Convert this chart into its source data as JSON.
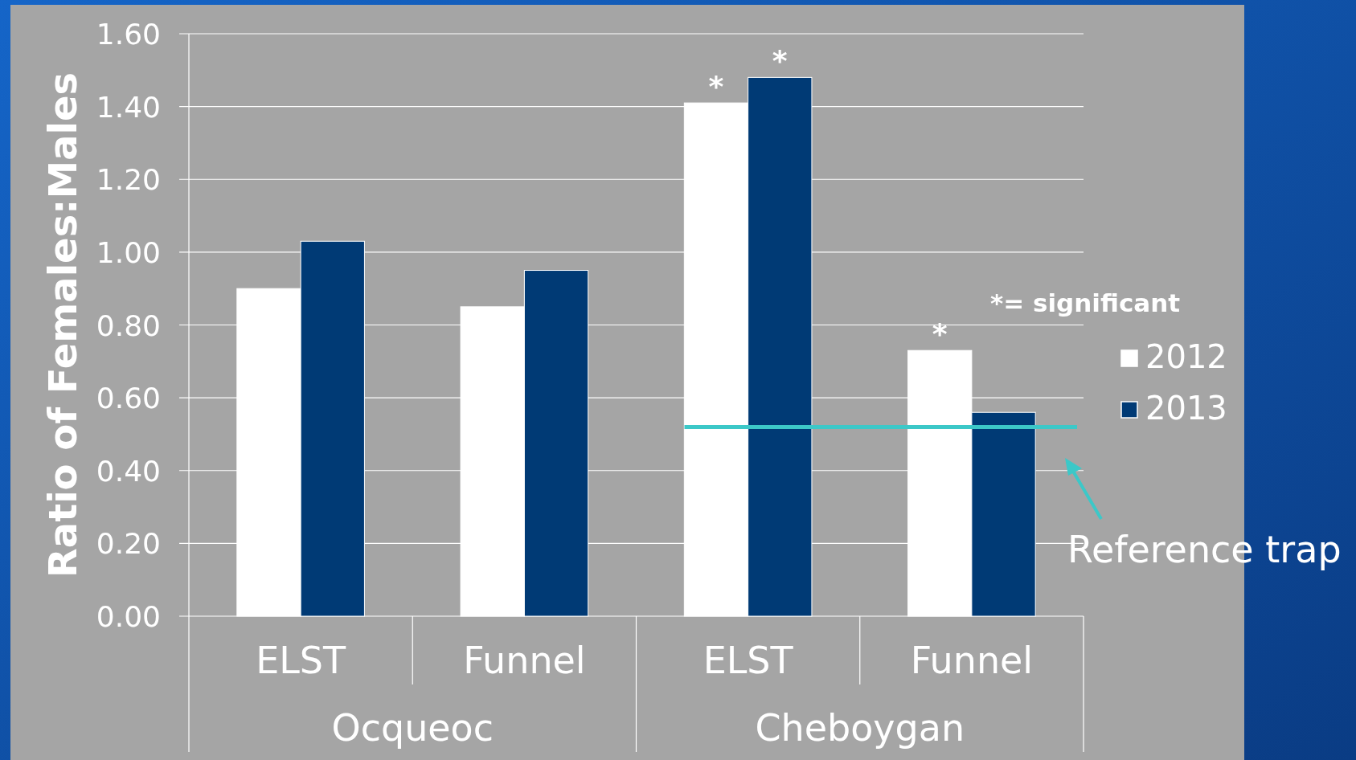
{
  "chart_data": {
    "type": "bar",
    "ylabel": "Ratio of Females:Males",
    "categories": [
      "ELST",
      "Funnel",
      "ELST",
      "Funnel"
    ],
    "series": [
      {
        "name": "2012",
        "color": "#ffffff",
        "values": [
          0.9,
          0.85,
          1.41,
          0.73
        ],
        "value_labels": [
          null,
          null,
          "*",
          "*"
        ]
      },
      {
        "name": "2013",
        "color": "#003a75",
        "values": [
          1.03,
          0.95,
          1.48,
          0.56
        ],
        "value_labels": [
          null,
          null,
          "*",
          null
        ]
      }
    ],
    "ylim": [
      0,
      1.6
    ],
    "yticks": [
      {
        "value": 0,
        "label": "0.00"
      },
      {
        "value": 0.2,
        "label": "0.20"
      },
      {
        "value": 0.4,
        "label": "0.40"
      },
      {
        "value": 0.6,
        "label": "0.60"
      },
      {
        "value": 0.8,
        "label": "0.80"
      },
      {
        "value": 1,
        "label": "1.00"
      },
      {
        "value": 1.2,
        "label": "1.20"
      },
      {
        "value": 1.4,
        "label": "1.40"
      },
      {
        "value": 1.6,
        "label": "1.60"
      }
    ],
    "grid": "y",
    "legend": "right",
    "ref_lines": [
      {
        "axis": "y",
        "value": 0.52,
        "label": "Reference trap",
        "color": "#3cc8c8"
      }
    ],
    "annotations": [
      "*= significant",
      "Ocqueoc",
      "Cheboygan"
    ]
  }
}
